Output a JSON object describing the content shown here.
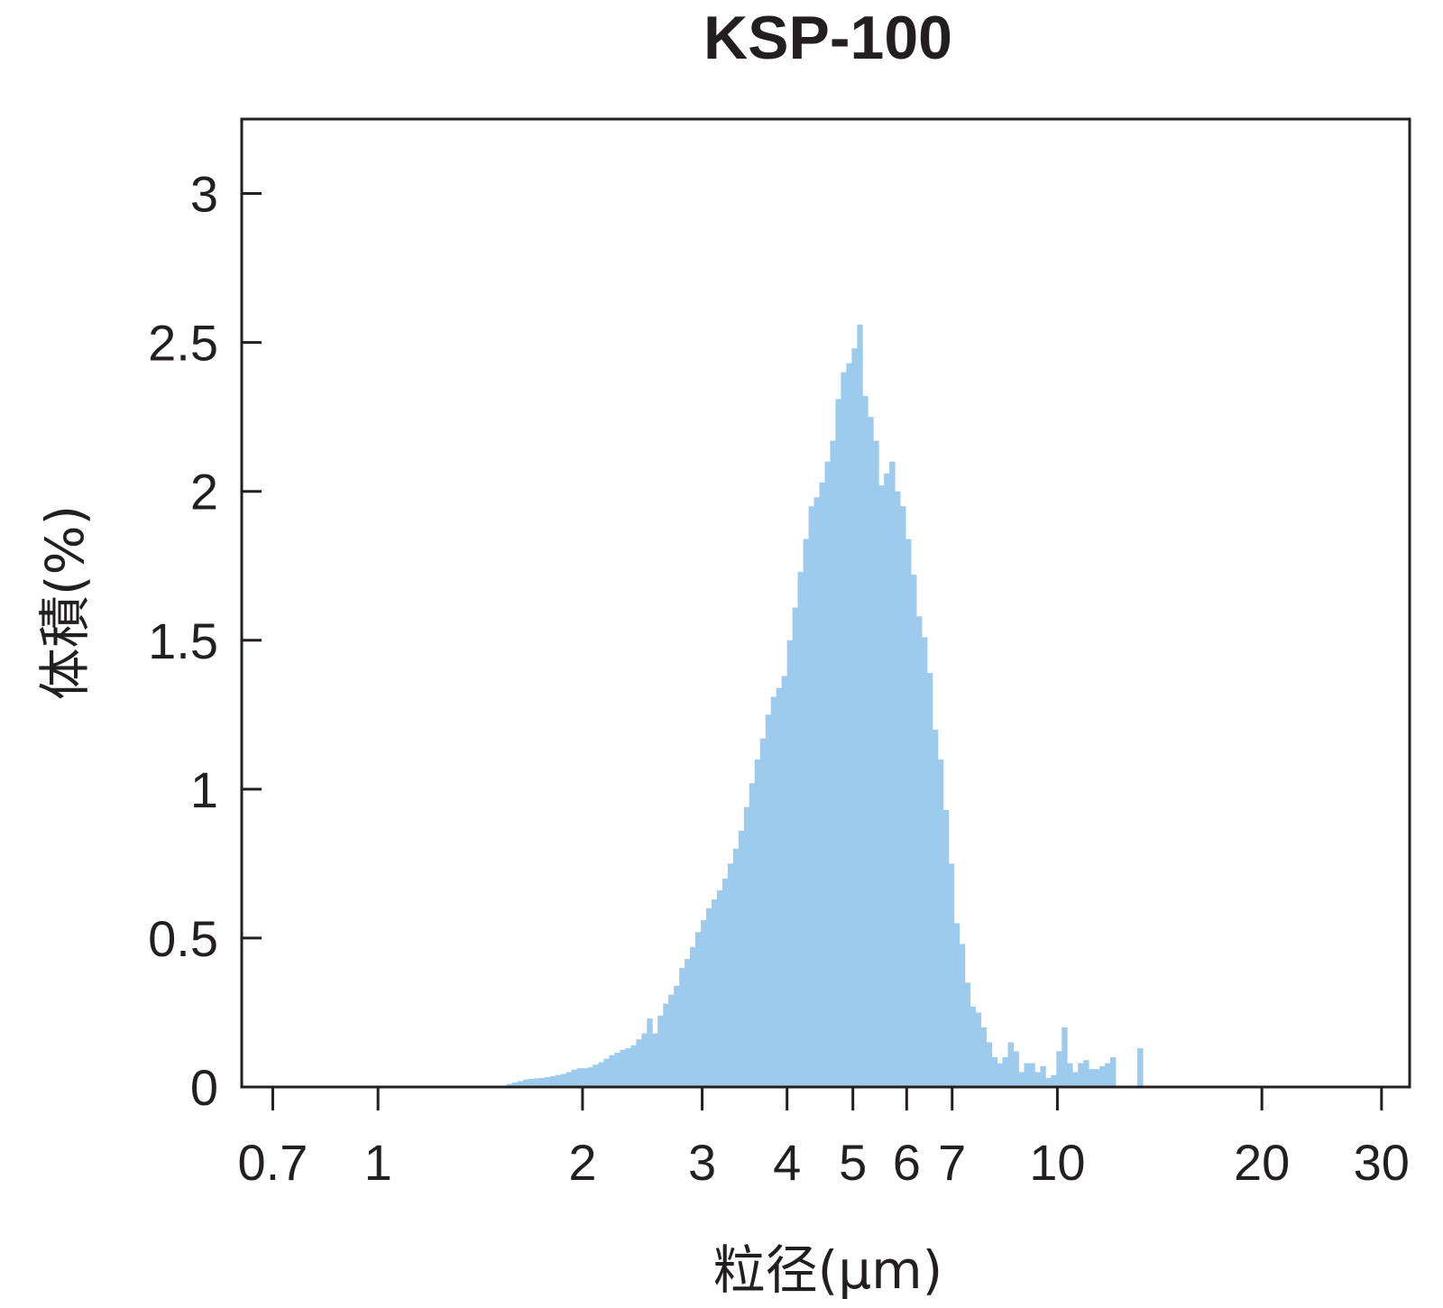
{
  "chart_data": {
    "type": "bar",
    "title": "KSP-100",
    "xlabel": "粒径(μm)",
    "ylabel": "体積(%)",
    "x_scale": "log",
    "xlim": [
      0.63,
      33
    ],
    "ylim": [
      0,
      3.25
    ],
    "x_ticks": [
      0.7,
      1,
      2,
      3,
      4,
      5,
      6,
      7,
      10,
      20,
      30
    ],
    "x_tick_labels": [
      "0.7",
      "1",
      "2",
      "3",
      "4",
      "5",
      "6",
      "7",
      "10",
      "20",
      "30"
    ],
    "y_ticks": [
      0,
      0.5,
      1,
      1.5,
      2,
      2.5,
      3
    ],
    "y_tick_labels": [
      "0",
      "0.5",
      "1",
      "1.5",
      "2",
      "2.5",
      "3"
    ],
    "grid": false,
    "color": "#9ccbee",
    "bins": [
      [
        1.546,
        1.575,
        0.01
      ],
      [
        1.575,
        1.604,
        0.015
      ],
      [
        1.604,
        1.634,
        0.02
      ],
      [
        1.634,
        1.664,
        0.025
      ],
      [
        1.664,
        1.695,
        0.027
      ],
      [
        1.695,
        1.726,
        0.029
      ],
      [
        1.726,
        1.758,
        0.03
      ],
      [
        1.758,
        1.79,
        0.033
      ],
      [
        1.79,
        1.823,
        0.036
      ],
      [
        1.823,
        1.857,
        0.04
      ],
      [
        1.857,
        1.891,
        0.044
      ],
      [
        1.891,
        1.926,
        0.05
      ],
      [
        1.926,
        1.962,
        0.058
      ],
      [
        1.962,
        1.998,
        0.063
      ],
      [
        1.998,
        2.035,
        0.063
      ],
      [
        2.035,
        2.072,
        0.066
      ],
      [
        2.072,
        2.11,
        0.075
      ],
      [
        2.11,
        2.149,
        0.083
      ],
      [
        2.149,
        2.189,
        0.095
      ],
      [
        2.189,
        2.229,
        0.107
      ],
      [
        2.229,
        2.27,
        0.115
      ],
      [
        2.27,
        2.312,
        0.125
      ],
      [
        2.312,
        2.355,
        0.13
      ],
      [
        2.355,
        2.398,
        0.14
      ],
      [
        2.398,
        2.443,
        0.16
      ],
      [
        2.443,
        2.488,
        0.18
      ],
      [
        2.488,
        2.534,
        0.23
      ],
      [
        2.534,
        2.58,
        0.18
      ],
      [
        2.58,
        2.628,
        0.24
      ],
      [
        2.628,
        2.676,
        0.28
      ],
      [
        2.676,
        2.726,
        0.31
      ],
      [
        2.726,
        2.776,
        0.34
      ],
      [
        2.776,
        2.827,
        0.4
      ],
      [
        2.827,
        2.879,
        0.43
      ],
      [
        2.879,
        2.932,
        0.47
      ],
      [
        2.932,
        2.986,
        0.52
      ],
      [
        2.986,
        3.041,
        0.56
      ],
      [
        3.041,
        3.097,
        0.6
      ],
      [
        3.097,
        3.154,
        0.63
      ],
      [
        3.154,
        3.212,
        0.66
      ],
      [
        3.212,
        3.271,
        0.7
      ],
      [
        3.271,
        3.332,
        0.75
      ],
      [
        3.332,
        3.393,
        0.8
      ],
      [
        3.393,
        3.456,
        0.86
      ],
      [
        3.456,
        3.519,
        0.94
      ],
      [
        3.519,
        3.584,
        1.02
      ],
      [
        3.584,
        3.65,
        1.1
      ],
      [
        3.65,
        3.718,
        1.17
      ],
      [
        3.718,
        3.786,
        1.25
      ],
      [
        3.786,
        3.856,
        1.31
      ],
      [
        3.856,
        3.927,
        1.34
      ],
      [
        3.927,
        4.0,
        1.38
      ],
      [
        4.0,
        4.073,
        1.5
      ],
      [
        4.073,
        4.148,
        1.61
      ],
      [
        4.148,
        4.225,
        1.73
      ],
      [
        4.225,
        4.303,
        1.84
      ],
      [
        4.303,
        4.382,
        1.95
      ],
      [
        4.382,
        4.463,
        1.98
      ],
      [
        4.463,
        4.545,
        2.03
      ],
      [
        4.545,
        4.629,
        2.1
      ],
      [
        4.629,
        4.714,
        2.17
      ],
      [
        4.714,
        4.801,
        2.31
      ],
      [
        4.801,
        4.89,
        2.4
      ],
      [
        4.89,
        4.98,
        2.43
      ],
      [
        4.98,
        5.072,
        2.48
      ],
      [
        5.072,
        5.165,
        2.56
      ],
      [
        5.165,
        5.26,
        2.32
      ],
      [
        5.26,
        5.357,
        2.25
      ],
      [
        5.357,
        5.456,
        2.17
      ],
      [
        5.456,
        5.557,
        2.02
      ],
      [
        5.557,
        5.659,
        2.06
      ],
      [
        5.659,
        5.764,
        2.1
      ],
      [
        5.764,
        5.87,
        2.0
      ],
      [
        5.87,
        5.978,
        1.95
      ],
      [
        5.978,
        6.088,
        1.84
      ],
      [
        6.088,
        6.2,
        1.72
      ],
      [
        6.2,
        6.315,
        1.58
      ],
      [
        6.315,
        6.431,
        1.51
      ],
      [
        6.431,
        6.549,
        1.39
      ],
      [
        6.549,
        6.67,
        1.2
      ],
      [
        6.67,
        6.793,
        1.1
      ],
      [
        6.793,
        6.918,
        0.93
      ],
      [
        6.918,
        7.045,
        0.75
      ],
      [
        7.045,
        7.175,
        0.55
      ],
      [
        7.175,
        7.307,
        0.48
      ],
      [
        7.307,
        7.442,
        0.35
      ],
      [
        7.442,
        7.579,
        0.27
      ],
      [
        7.579,
        7.719,
        0.25
      ],
      [
        7.719,
        7.861,
        0.2
      ],
      [
        7.861,
        8.006,
        0.15
      ],
      [
        8.006,
        8.153,
        0.1
      ],
      [
        8.153,
        8.303,
        0.08
      ],
      [
        8.303,
        8.456,
        0.1
      ],
      [
        8.456,
        8.612,
        0.15
      ],
      [
        8.612,
        8.771,
        0.12
      ],
      [
        8.771,
        8.932,
        0.05
      ],
      [
        8.932,
        9.097,
        0.08
      ],
      [
        9.097,
        9.264,
        0.08
      ],
      [
        9.264,
        9.435,
        0.05
      ],
      [
        9.435,
        9.609,
        0.07
      ],
      [
        9.609,
        9.786,
        0.03
      ],
      [
        9.786,
        9.966,
        0.04
      ],
      [
        9.966,
        10.15,
        0.12
      ],
      [
        10.15,
        10.337,
        0.2
      ],
      [
        10.337,
        10.527,
        0.08
      ],
      [
        10.527,
        10.721,
        0.05
      ],
      [
        10.721,
        10.919,
        0.08
      ],
      [
        10.919,
        11.12,
        0.09
      ],
      [
        11.12,
        11.325,
        0.06
      ],
      [
        11.325,
        11.533,
        0.06
      ],
      [
        11.533,
        11.746,
        0.07
      ],
      [
        11.746,
        11.962,
        0.08
      ],
      [
        11.962,
        12.182,
        0.1
      ],
      [
        13.116,
        13.358,
        0.13
      ]
    ]
  }
}
